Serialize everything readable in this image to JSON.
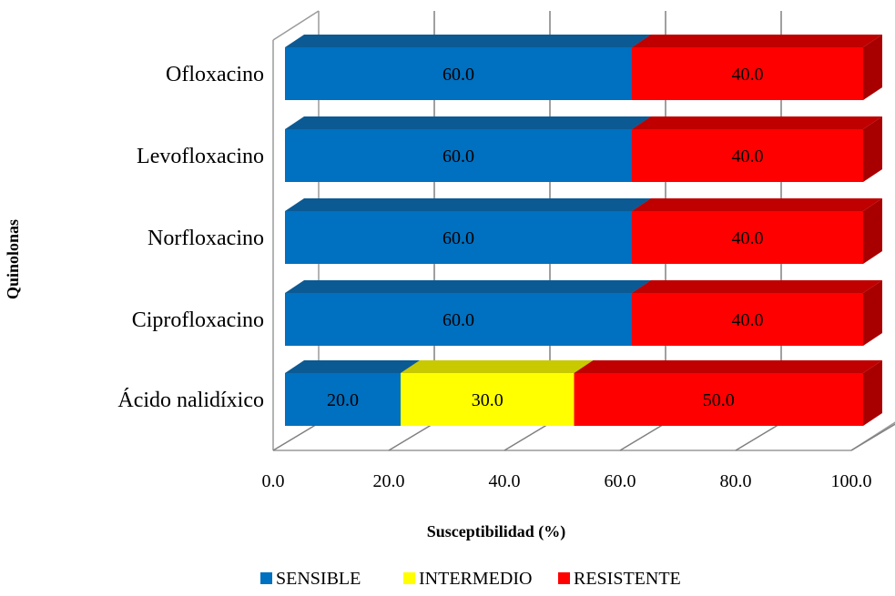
{
  "chart_data": {
    "type": "bar",
    "orientation": "horizontal",
    "stacked": true,
    "style": "3d",
    "categories": [
      "Ofloxacino",
      "Levofloxacino",
      "Norfloxacino",
      "Ciprofloxacino",
      "Ácido nalidíxico"
    ],
    "series": [
      {
        "name": "SENSIBLE",
        "values": [
          60.0,
          60.0,
          60.0,
          60.0,
          20.0
        ],
        "labels": [
          "60.0",
          "60.0",
          "60.0",
          "60.0",
          "20.0"
        ],
        "color": "#0070C0",
        "top_color": "#0B5A94",
        "side_color": "#0B4F82"
      },
      {
        "name": "INTERMEDIO",
        "values": [
          0,
          0,
          0,
          0,
          30.0
        ],
        "labels": [
          "",
          "",
          "",
          "",
          "30.0"
        ],
        "color": "#FFFF00",
        "top_color": "#C9C900",
        "side_color": "#B8B800"
      },
      {
        "name": "RESISTENTE",
        "values": [
          40.0,
          40.0,
          40.0,
          40.0,
          50.0
        ],
        "labels": [
          "40.0",
          "40.0",
          "40.0",
          "40.0",
          "50.0"
        ],
        "color": "#FF0000",
        "top_color": "#C00000",
        "side_color": "#A80000"
      }
    ],
    "xlabel": "Susceptibilidad  (%)",
    "ylabel": "Quinolonas",
    "xlim": [
      0,
      100
    ],
    "xticks": [
      0,
      20,
      40,
      60,
      80,
      100
    ],
    "xtick_labels": [
      "0.0",
      "20.0",
      "40.0",
      "60.0",
      "80.0",
      "100.0"
    ],
    "grid": true,
    "legend": "bottom"
  }
}
